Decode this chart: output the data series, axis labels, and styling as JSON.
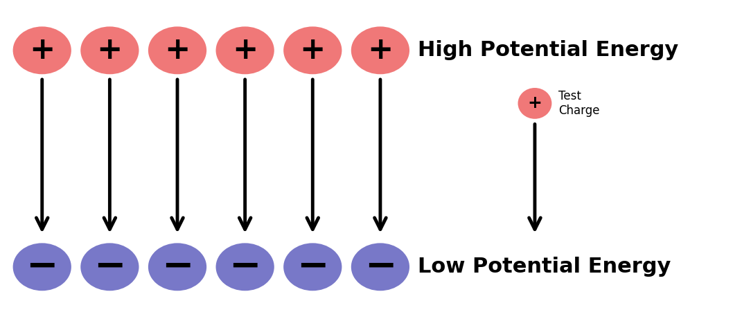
{
  "background_color": "#ffffff",
  "n_main_charges": 6,
  "positive_color": "#F07878",
  "negative_color": "#7878C8",
  "label_color": "#000000",
  "high_label_text": "High Potential Energy",
  "low_label_text": "Low Potential Energy",
  "plus_symbol": "+",
  "minus_symbol": "−",
  "arrow_linewidth": 3.5,
  "arrowhead_size": 30,
  "high_label_fontsize": 22,
  "low_label_fontsize": 22,
  "plus_fontsize": 32,
  "minus_fontsize": 40,
  "test_label_fontsize": 12,
  "test_plus_fontsize": 18
}
